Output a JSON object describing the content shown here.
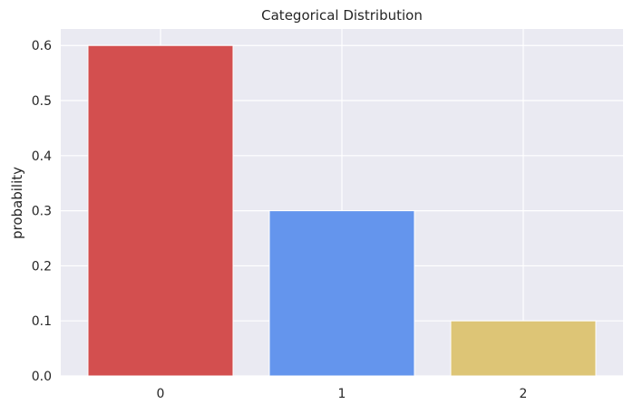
{
  "chart_data": {
    "type": "bar",
    "title": "Categorical Distribution",
    "xlabel": "",
    "ylabel": "probability",
    "categories": [
      "0",
      "1",
      "2"
    ],
    "values": [
      0.6,
      0.3,
      0.1
    ],
    "bar_colors": [
      "#d34f4f",
      "#6495ed",
      "#ddc576"
    ],
    "ylim": [
      0,
      0.63
    ],
    "yticks": [
      0.0,
      0.1,
      0.2,
      0.3,
      0.4,
      0.5,
      0.6
    ],
    "ytick_labels": [
      "0.0",
      "0.1",
      "0.2",
      "0.3",
      "0.4",
      "0.5",
      "0.6"
    ],
    "grid": true,
    "style": {
      "plot_background": "#eaeaf2",
      "grid_color": "#ffffff",
      "bar_edge_color": "#ffffff"
    }
  }
}
